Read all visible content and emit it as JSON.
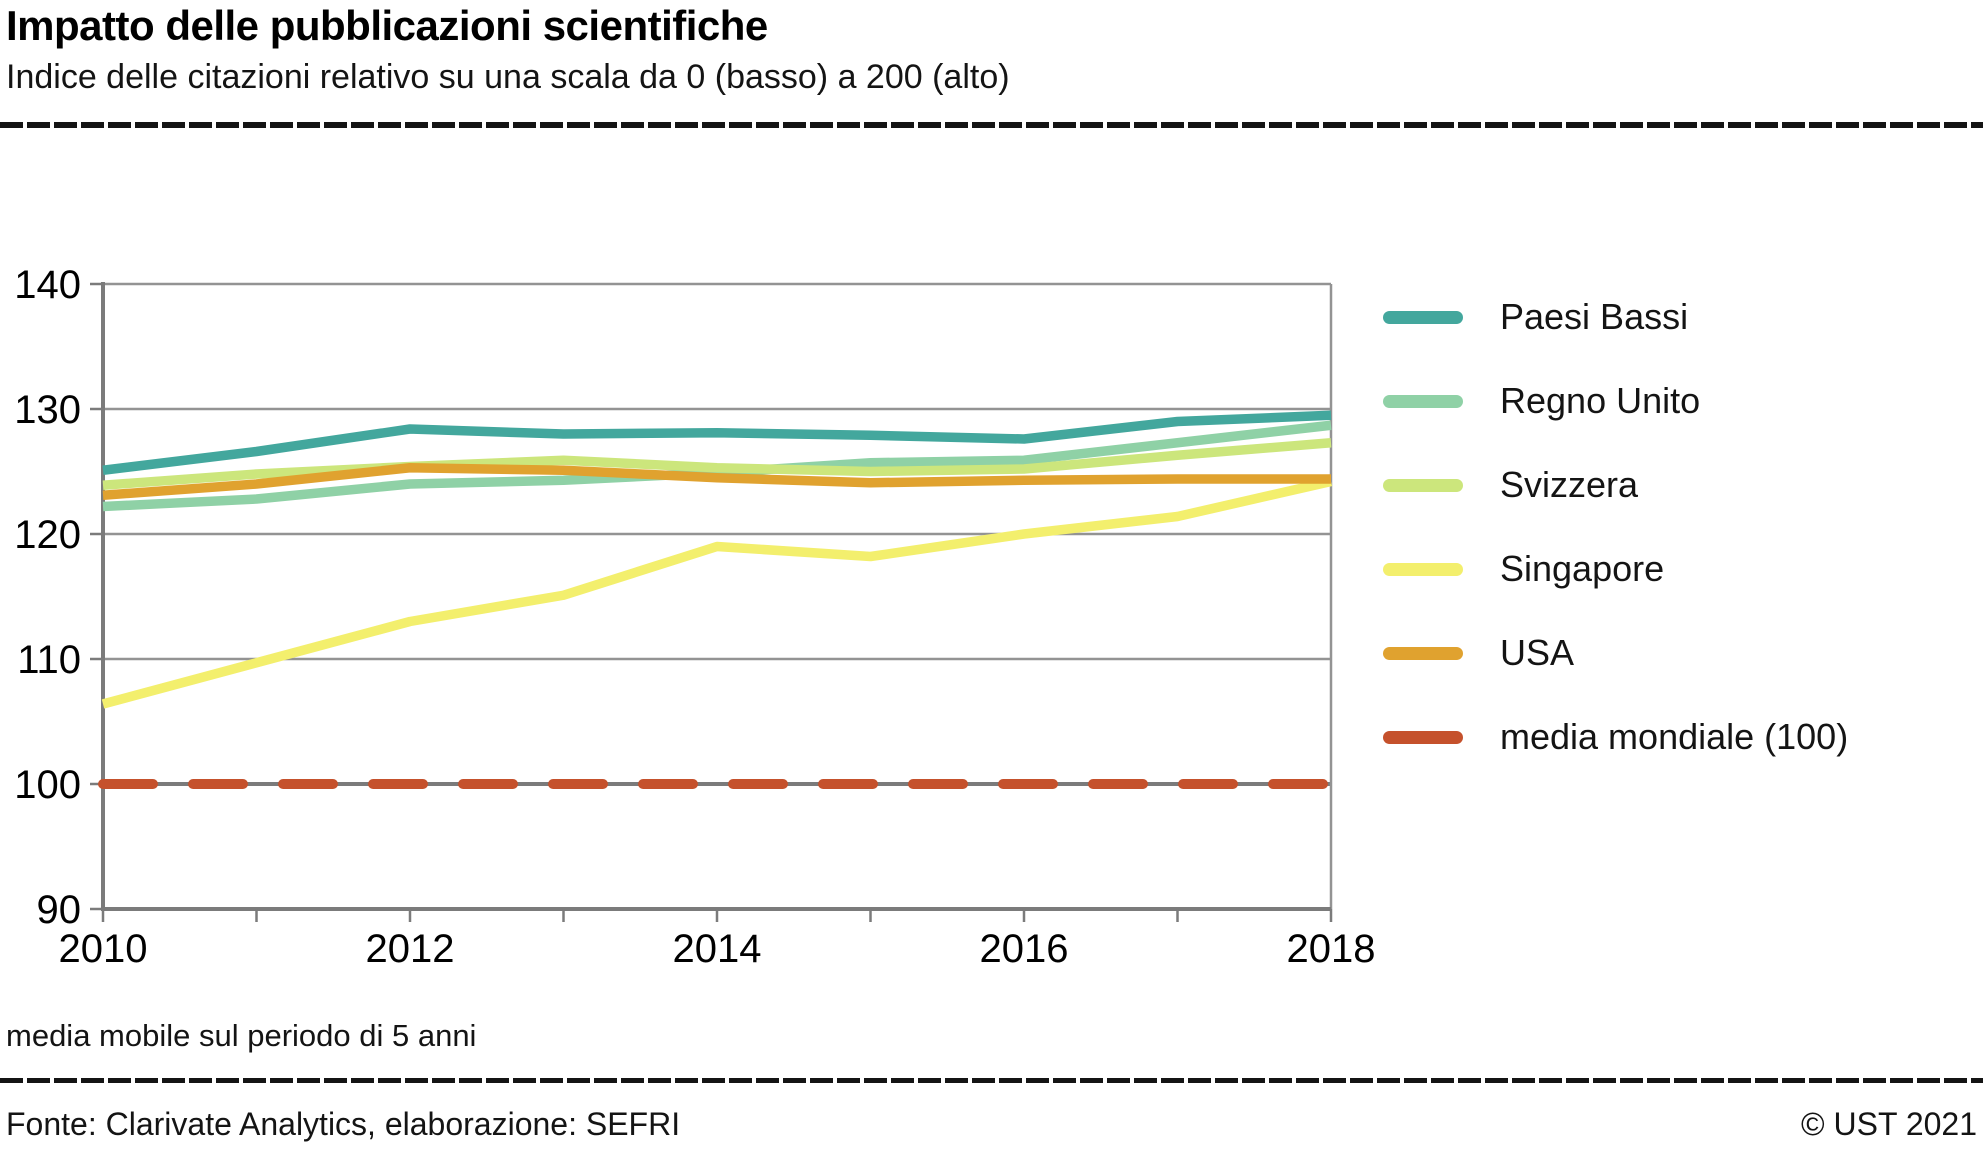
{
  "header": {
    "title": "Impatto delle pubblicazioni scientifiche",
    "subtitle": "Indice delle citazioni relativo su una scala da 0 (basso) a 200 (alto)"
  },
  "footnote": "media mobile sul periodo di 5 anni",
  "footer": {
    "source": "Fonte: Clarivate Analytics, elaborazione: SEFRI",
    "copyright": "© UST 2021"
  },
  "colors": {
    "gridline": "#939393",
    "axis": "#7b7b7b",
    "text": "#141414"
  },
  "chart_data": {
    "type": "line",
    "title": "Impatto delle pubblicazioni scientifiche",
    "xlabel": "",
    "ylabel": "",
    "x": [
      2010,
      2011,
      2012,
      2013,
      2014,
      2015,
      2016,
      2017,
      2018
    ],
    "xticks_labeled": [
      2010,
      2012,
      2014,
      2016,
      2018
    ],
    "ylim": [
      90,
      140
    ],
    "yticks": [
      90,
      100,
      110,
      120,
      130,
      140
    ],
    "grid": true,
    "legend_position": "right",
    "series": [
      {
        "name": "Paesi Bassi",
        "color": "#43a79d",
        "dashed": false,
        "values": [
          125.1,
          126.6,
          128.4,
          128.0,
          128.1,
          127.9,
          127.6,
          129.0,
          129.5
        ]
      },
      {
        "name": "Regno Unito",
        "color": "#8fd1a6",
        "dashed": false,
        "values": [
          122.2,
          122.8,
          124.0,
          124.3,
          124.9,
          125.7,
          125.9,
          127.3,
          128.7
        ]
      },
      {
        "name": "Svizzera",
        "color": "#cce67c",
        "dashed": false,
        "values": [
          123.9,
          124.8,
          125.4,
          125.9,
          125.3,
          125.0,
          125.2,
          126.3,
          127.3
        ]
      },
      {
        "name": "Singapore",
        "color": "#f3ef6d",
        "dashed": false,
        "values": [
          106.4,
          109.7,
          113.0,
          115.1,
          119.0,
          118.2,
          120.0,
          121.4,
          124.2
        ]
      },
      {
        "name": "USA",
        "color": "#e0a22f",
        "dashed": false,
        "values": [
          123.1,
          124.0,
          125.3,
          125.1,
          124.5,
          124.1,
          124.3,
          124.4,
          124.4
        ]
      },
      {
        "name": "media mondiale (100)",
        "color": "#c5512c",
        "dashed": true,
        "values": [
          100,
          100,
          100,
          100,
          100,
          100,
          100,
          100,
          100
        ]
      }
    ]
  }
}
